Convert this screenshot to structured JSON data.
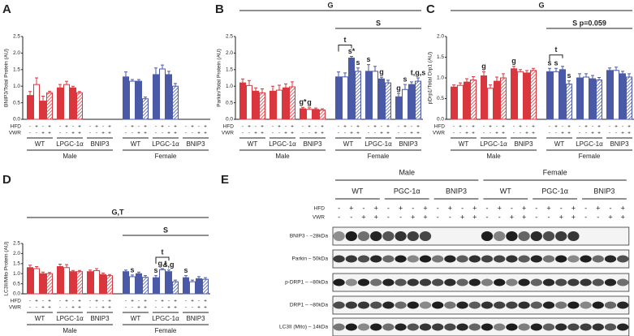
{
  "chart_data": [
    {
      "type": "bar",
      "panel": "A",
      "ylabel": "BNIP3/Total Protein (AU)",
      "ylim": [
        0,
        2.5
      ],
      "yticks": [
        {
          "value": 0,
          "label": "0.0"
        },
        {
          "value": 0.5,
          "label": "0.5"
        },
        {
          "value": 1,
          "label": "1.0"
        },
        {
          "value": 1.5,
          "label": "1.5"
        },
        {
          "value": 2,
          "label": "2.0"
        },
        {
          "value": 2.5,
          "label": "2.5"
        }
      ],
      "hfd_label": "HFD",
      "vwr_label": "VWR",
      "hfd": [
        "-",
        "+",
        "-",
        "+"
      ],
      "vwr": [
        "-",
        "-",
        "+",
        "+"
      ],
      "fills": [
        "solid",
        "open",
        "solid",
        "hatch"
      ],
      "sexes": [
        {
          "label": "Male",
          "color": "#d9363e",
          "groups": [
            {
              "label": "WT",
              "values": [
                0.72,
                1.05,
                0.55,
                0.8
              ],
              "errors": [
                0.12,
                0.2,
                0.15,
                0.05
              ],
              "labels": [
                null,
                null,
                null,
                null
              ]
            },
            {
              "label": "LPGC-1α",
              "values": [
                0.95,
                1.05,
                0.95,
                0.8
              ],
              "errors": [
                0.1,
                0.1,
                0.05,
                0.04
              ],
              "labels": [
                null,
                null,
                null,
                null
              ]
            },
            {
              "label": "BNIP3",
              "values": [
                null,
                null,
                null,
                null
              ],
              "errors": [
                null,
                null,
                null,
                null
              ],
              "labels": [
                null,
                null,
                null,
                null
              ]
            }
          ]
        },
        {
          "label": "Female",
          "color": "#4b5aa7",
          "groups": [
            {
              "label": "WT",
              "values": [
                1.28,
                1.15,
                1.15,
                0.62
              ],
              "errors": [
                0.15,
                0.05,
                0.05,
                0.05
              ],
              "labels": [
                null,
                null,
                null,
                null
              ]
            },
            {
              "label": "LPGC-1α",
              "values": [
                1.35,
                1.52,
                1.35,
                1.0
              ],
              "errors": [
                0.2,
                0.12,
                0.1,
                0.08
              ],
              "labels": [
                null,
                null,
                null,
                null
              ]
            },
            {
              "label": "BNIP3",
              "values": [
                null,
                null,
                null,
                null
              ],
              "errors": [
                null,
                null,
                null,
                null
              ],
              "labels": [
                null,
                null,
                null,
                null
              ]
            }
          ]
        }
      ]
    },
    {
      "type": "bar",
      "panel": "B",
      "ylabel": "Parkin/Total Protein (AU)",
      "ylim": [
        0,
        2.5
      ],
      "yticks": [
        {
          "value": 0,
          "label": "0.0"
        },
        {
          "value": 0.5,
          "label": "0.5"
        },
        {
          "value": 1,
          "label": "1.0"
        },
        {
          "value": 1.5,
          "label": "1.5"
        },
        {
          "value": 2,
          "label": "2.0"
        },
        {
          "value": 2.5,
          "label": "2.5"
        }
      ],
      "hfd_label": "HFD",
      "vwr_label": "VWR",
      "hfd": [
        "-",
        "+",
        "-",
        "+"
      ],
      "vwr": [
        "-",
        "-",
        "+",
        "+"
      ],
      "fills": [
        "solid",
        "open",
        "solid",
        "hatch"
      ],
      "bracket_all": "G",
      "bracket_female": "S",
      "sexes": [
        {
          "label": "Male",
          "color": "#d9363e",
          "groups": [
            {
              "label": "WT",
              "values": [
                1.1,
                1.02,
                0.85,
                0.8
              ],
              "errors": [
                0.12,
                0.15,
                0.1,
                0.12
              ],
              "labels": [
                null,
                null,
                null,
                null
              ]
            },
            {
              "label": "LPGC-1α",
              "values": [
                0.85,
                0.88,
                0.95,
                0.98
              ],
              "errors": [
                0.15,
                0.15,
                0.12,
                0.15
              ],
              "labels": [
                null,
                null,
                null,
                null
              ]
            },
            {
              "label": "BNIP3",
              "values": [
                0.32,
                0.3,
                0.3,
                0.28
              ],
              "errors": [
                0.04,
                0.05,
                0.04,
                0.04
              ],
              "labels": [
                "g*",
                "g",
                null,
                null
              ]
            }
          ]
        },
        {
          "label": "Female",
          "color": "#4b5aa7",
          "groups": [
            {
              "label": "WT",
              "values": [
                1.28,
                1.28,
                1.85,
                1.45
              ],
              "errors": [
                0.15,
                0.12,
                0.05,
                0.1
              ],
              "labels": [
                null,
                null,
                "s*",
                "s"
              ],
              "bracket": "t"
            },
            {
              "label": "LPGC-1α",
              "values": [
                1.45,
                1.45,
                1.22,
                1.1
              ],
              "errors": [
                0.2,
                0.15,
                0.05,
                0.08
              ],
              "labels": [
                "s",
                null,
                "g",
                null
              ]
            },
            {
              "label": "BNIP3",
              "values": [
                0.68,
                0.9,
                1.05,
                1.15
              ],
              "errors": [
                0.1,
                0.15,
                0.08,
                0.1
              ],
              "labels": [
                "g",
                "s",
                null,
                "t,g,s"
              ]
            }
          ]
        }
      ]
    },
    {
      "type": "bar",
      "panel": "C",
      "ylabel": "pDrp1/Total Drp1 (AU)",
      "ylim": [
        0,
        2
      ],
      "yticks": [
        {
          "value": 0,
          "label": "0.0"
        },
        {
          "value": 0.5,
          "label": "0.5"
        },
        {
          "value": 1,
          "label": "1.0"
        },
        {
          "value": 1.5,
          "label": "1.5"
        },
        {
          "value": 2,
          "label": "2.0"
        }
      ],
      "hfd_label": "HFD",
      "vwr_label": "VWR",
      "hfd": [
        "-",
        "+",
        "-",
        "+"
      ],
      "vwr": [
        "-",
        "-",
        "+",
        "+"
      ],
      "fills": [
        "solid",
        "open",
        "solid",
        "hatch"
      ],
      "bracket_all": "G",
      "bracket_female": "S p=0.059",
      "sexes": [
        {
          "label": "Male",
          "color": "#d9363e",
          "groups": [
            {
              "label": "WT",
              "values": [
                0.78,
                0.82,
                0.9,
                0.95
              ],
              "errors": [
                0.05,
                0.06,
                0.08,
                0.08
              ],
              "labels": [
                null,
                null,
                null,
                null
              ]
            },
            {
              "label": "LPGC-1α",
              "values": [
                1.05,
                0.75,
                0.92,
                1.0
              ],
              "errors": [
                0.1,
                0.08,
                0.1,
                0.1
              ],
              "labels": [
                "g",
                null,
                null,
                null
              ]
            },
            {
              "label": "BNIP3",
              "values": [
                1.22,
                1.15,
                1.12,
                1.18
              ],
              "errors": [
                0.06,
                0.05,
                0.06,
                0.05
              ],
              "labels": [
                "g",
                null,
                null,
                null
              ]
            }
          ]
        },
        {
          "label": "Female",
          "color": "#4b5aa7",
          "groups": [
            {
              "label": "WT",
              "values": [
                1.15,
                1.15,
                1.2,
                0.85
              ],
              "errors": [
                0.08,
                0.08,
                0.08,
                0.08
              ],
              "labels": [
                "s",
                "s",
                null,
                "s"
              ],
              "bracket": "t"
            },
            {
              "label": "LPGC-1α",
              "values": [
                1.0,
                1.02,
                0.98,
                0.95
              ],
              "errors": [
                0.1,
                0.08,
                0.08,
                0.06
              ],
              "labels": [
                null,
                null,
                null,
                null
              ]
            },
            {
              "label": "BNIP3",
              "values": [
                1.18,
                1.18,
                1.1,
                1.02
              ],
              "errors": [
                0.06,
                0.08,
                0.06,
                0.08
              ],
              "labels": [
                null,
                null,
                null,
                null
              ]
            }
          ]
        }
      ]
    },
    {
      "type": "bar",
      "panel": "D",
      "ylabel": "LC3II/Mito Protein (AU)",
      "ylim": [
        0,
        2.5
      ],
      "yticks": [
        {
          "value": 0,
          "label": "0.0"
        },
        {
          "value": 0.5,
          "label": "0.5"
        },
        {
          "value": 1,
          "label": "1.0"
        },
        {
          "value": 1.5,
          "label": "1.5"
        },
        {
          "value": 2,
          "label": "2.0"
        },
        {
          "value": 2.5,
          "label": "2.5"
        }
      ],
      "hfd_label": "HFD",
      "vwr_label": "VWR",
      "hfd": [
        "-",
        "+",
        "-",
        "+"
      ],
      "vwr": [
        "-",
        "-",
        "+",
        "+"
      ],
      "fills": [
        "solid",
        "open",
        "solid",
        "hatch"
      ],
      "bracket_all": "G,T",
      "bracket_female": "S",
      "sexes": [
        {
          "label": "Male",
          "color": "#d9363e",
          "groups": [
            {
              "label": "WT",
              "values": [
                1.3,
                1.25,
                1.0,
                1.0
              ],
              "errors": [
                0.12,
                0.1,
                0.08,
                0.06
              ],
              "labels": [
                null,
                null,
                null,
                null
              ]
            },
            {
              "label": "LPGC-1α",
              "values": [
                1.35,
                1.3,
                1.1,
                1.1
              ],
              "errors": [
                0.12,
                0.15,
                0.06,
                0.06
              ],
              "labels": [
                null,
                null,
                null,
                null
              ]
            },
            {
              "label": "BNIP3",
              "values": [
                1.1,
                1.15,
                0.95,
                0.9
              ],
              "errors": [
                0.08,
                0.1,
                0.08,
                0.06
              ],
              "labels": [
                null,
                null,
                null,
                null
              ]
            }
          ]
        },
        {
          "label": "Female",
          "color": "#4b5aa7",
          "groups": [
            {
              "label": "WT",
              "values": [
                1.1,
                0.85,
                1.0,
                0.82
              ],
              "errors": [
                0.08,
                0.08,
                0.08,
                0.08
              ],
              "labels": [
                null,
                "s",
                null,
                null
              ]
            },
            {
              "label": "LPGC-1α",
              "values": [
                0.8,
                1.2,
                1.1,
                0.6
              ],
              "errors": [
                0.1,
                0.05,
                0.08,
                0.08
              ],
              "labels": [
                "s",
                "g,t",
                "s,g",
                null
              ],
              "bracket": "t"
            },
            {
              "label": "BNIP3",
              "values": [
                0.8,
                0.6,
                0.75,
                0.72
              ],
              "errors": [
                0.1,
                0.08,
                0.1,
                0.08
              ],
              "labels": [
                "s",
                null,
                null,
                null
              ]
            }
          ]
        }
      ]
    }
  ],
  "blot": {
    "panel": "E",
    "hfd_label": "HFD",
    "vwr_label": "VWR",
    "hfd": [
      "-",
      "+",
      "-",
      "+"
    ],
    "vwr": [
      "-",
      "-",
      "+",
      "+"
    ],
    "sexes": [
      {
        "label": "Male",
        "groups": [
          "WT",
          "PGC-1α",
          "BNIP3"
        ]
      },
      {
        "label": "Female",
        "groups": [
          "WT",
          "PGC-1α",
          "BNIP3"
        ]
      }
    ],
    "rows": [
      "BNIP3 - ~28kDa",
      "Parkin – 50kDa",
      "p-DRP1 – ~80kDa",
      "DRP1 – ~80kDa",
      "LC3II (Mito) – 14kDa"
    ]
  }
}
